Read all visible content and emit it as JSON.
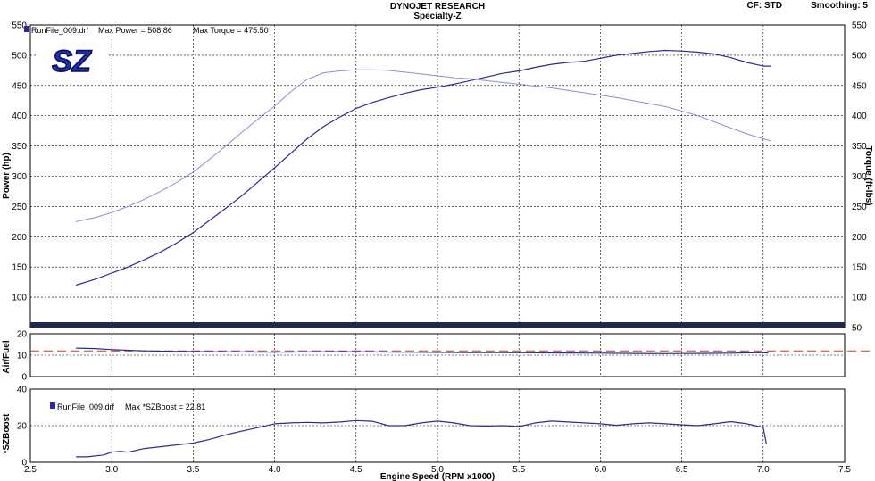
{
  "header": {
    "title": "DYNOJET RESEARCH",
    "subtitle": "Specialty-Z",
    "cf_label": "CF: STD",
    "smoothing_label": "Smoothing: 5"
  },
  "logo": {
    "text": "SZ"
  },
  "colors": {
    "power": "#2a2a9a",
    "torque": "#8c8cd8",
    "boost": "#2a2a9a",
    "airfuel": "#2a2a9a",
    "target_line": "#d23030",
    "grid": "#000000",
    "axis_bar": "#1e2a50"
  },
  "chart_data": [
    {
      "type": "line",
      "legend": {
        "file": "RunFile_009.drf",
        "max_power": "Max Power = 508.86",
        "max_torque": "Max Torque = 475.50"
      },
      "ylabel": "Power (hp)",
      "y2label": "Torque (ft-lbs)",
      "xlim": [
        2.5,
        7.5
      ],
      "ylim": [
        50,
        550
      ],
      "y2lim": [
        50,
        550
      ],
      "yticks": [
        100,
        150,
        200,
        250,
        300,
        350,
        400,
        450,
        500,
        550
      ],
      "y2ticks": [
        50,
        100,
        150,
        200,
        250,
        300,
        350,
        400,
        450,
        500,
        550
      ],
      "grid": true,
      "series": [
        {
          "key": "power",
          "x": [
            2.78,
            2.9,
            3.0,
            3.1,
            3.2,
            3.3,
            3.4,
            3.5,
            3.6,
            3.7,
            3.8,
            3.9,
            4.0,
            4.1,
            4.2,
            4.3,
            4.4,
            4.5,
            4.6,
            4.7,
            4.8,
            4.9,
            5.0,
            5.1,
            5.2,
            5.3,
            5.4,
            5.5,
            5.6,
            5.7,
            5.8,
            5.9,
            6.0,
            6.1,
            6.2,
            6.3,
            6.4,
            6.5,
            6.6,
            6.7,
            6.8,
            6.9,
            7.0,
            7.05
          ],
          "values": [
            120,
            130,
            140,
            150,
            162,
            175,
            190,
            207,
            227,
            247,
            268,
            291,
            314,
            338,
            362,
            382,
            398,
            412,
            422,
            430,
            437,
            443,
            447,
            452,
            458,
            464,
            470,
            474,
            480,
            485,
            488,
            490,
            495,
            500,
            503,
            506,
            508,
            507,
            505,
            502,
            496,
            488,
            482,
            482
          ]
        },
        {
          "key": "torque",
          "x": [
            2.78,
            2.9,
            3.0,
            3.1,
            3.2,
            3.3,
            3.4,
            3.5,
            3.6,
            3.7,
            3.8,
            3.9,
            4.0,
            4.1,
            4.2,
            4.3,
            4.4,
            4.5,
            4.6,
            4.7,
            4.8,
            4.9,
            5.0,
            5.1,
            5.2,
            5.3,
            5.4,
            5.5,
            5.6,
            5.7,
            5.8,
            5.9,
            6.0,
            6.1,
            6.2,
            6.3,
            6.4,
            6.5,
            6.6,
            6.7,
            6.8,
            6.9,
            7.0,
            7.05
          ],
          "values": [
            225,
            232,
            240,
            250,
            262,
            275,
            290,
            307,
            328,
            350,
            373,
            395,
            416,
            440,
            460,
            471,
            474,
            476,
            476,
            475,
            472,
            469,
            466,
            463,
            461,
            458,
            455,
            452,
            449,
            446,
            442,
            438,
            434,
            430,
            425,
            420,
            415,
            408,
            400,
            390,
            380,
            370,
            362,
            358
          ]
        }
      ]
    },
    {
      "type": "line",
      "ylabel": "Air/Fuel",
      "xlim": [
        2.5,
        7.5
      ],
      "ylim": [
        0,
        20
      ],
      "yticks": [
        0,
        10,
        20
      ],
      "grid": true,
      "target_value": 12,
      "series": [
        {
          "key": "airfuel",
          "x": [
            2.78,
            2.9,
            3.0,
            3.2,
            3.4,
            3.6,
            3.8,
            4.0,
            4.2,
            4.4,
            4.6,
            4.8,
            5.0,
            5.2,
            5.4,
            5.6,
            5.8,
            6.0,
            6.2,
            6.4,
            6.6,
            6.8,
            7.0,
            7.03
          ],
          "values": [
            13.3,
            13.1,
            12.6,
            12.0,
            11.7,
            11.6,
            11.5,
            11.4,
            11.5,
            11.6,
            11.5,
            11.4,
            11.3,
            11.2,
            11.2,
            11.1,
            11.0,
            10.9,
            10.8,
            10.7,
            10.8,
            10.9,
            11.2,
            11.0
          ]
        }
      ]
    },
    {
      "type": "line",
      "legend": {
        "file": "RunFile_009.drf",
        "max_boost": "Max *SZBoost = 22.81"
      },
      "ylabel": "*SZBoost",
      "xlabel": "Engine Speed (RPM x1000)",
      "xlim": [
        2.5,
        7.5
      ],
      "ylim": [
        0,
        40
      ],
      "yticks": [
        0,
        20,
        40
      ],
      "xticks": [
        2.5,
        3.0,
        3.5,
        4.0,
        4.5,
        5.0,
        5.5,
        6.0,
        6.5,
        7.0,
        7.5
      ],
      "xticklabels": [
        "2.5",
        "3.0",
        "3.5",
        "4.0",
        "4.5",
        "5.0",
        "5.5",
        "6.0",
        "6.5",
        "7.0",
        "7.5"
      ],
      "grid": true,
      "series": [
        {
          "key": "boost",
          "x": [
            2.78,
            2.85,
            2.95,
            3.0,
            3.05,
            3.1,
            3.2,
            3.3,
            3.4,
            3.5,
            3.6,
            3.7,
            3.8,
            3.9,
            4.0,
            4.1,
            4.2,
            4.3,
            4.4,
            4.5,
            4.6,
            4.7,
            4.8,
            4.9,
            5.0,
            5.1,
            5.2,
            5.3,
            5.4,
            5.5,
            5.6,
            5.7,
            5.8,
            5.9,
            6.0,
            6.1,
            6.2,
            6.3,
            6.4,
            6.5,
            6.6,
            6.7,
            6.8,
            6.9,
            6.95,
            7.0,
            7.02
          ],
          "values": [
            3,
            3,
            4,
            5.5,
            6,
            5.5,
            7.5,
            8.5,
            9.5,
            10.5,
            12.5,
            15,
            17,
            19,
            21,
            21.5,
            21.8,
            21.5,
            22,
            22.8,
            22.4,
            20,
            20,
            21.5,
            22.5,
            21.5,
            20,
            19.8,
            20,
            19.5,
            21.5,
            22.5,
            22,
            21.5,
            21,
            20.2,
            21,
            21.5,
            21,
            20.5,
            20,
            21,
            22.2,
            21,
            20,
            19,
            10
          ]
        }
      ]
    }
  ]
}
